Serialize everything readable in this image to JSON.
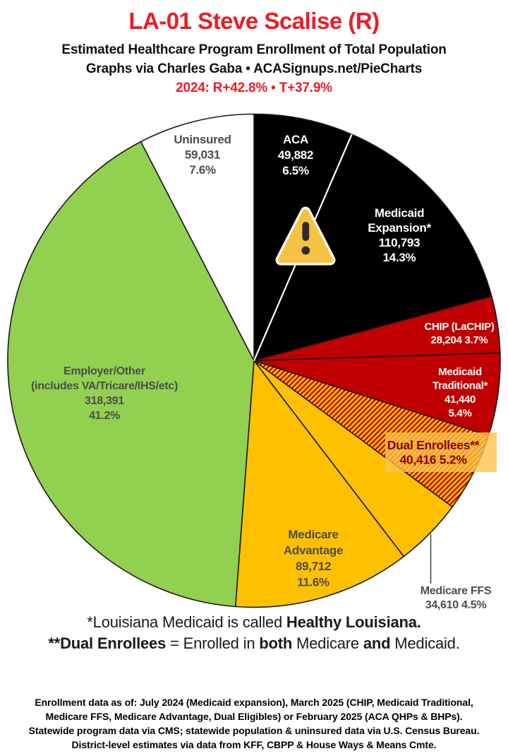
{
  "header": {
    "title": "LA-01 Steve Scalise (R)",
    "subtitle": "Estimated Healthcare Program Enrollment of Total Population",
    "credit": "Graphs via Charles Gaba   •   ACASignups.net/PieCharts",
    "partisan": "2024: R+42.8%  •  T+37.9%"
  },
  "colors": {
    "title_red": "#ED1C24",
    "black": "#000000",
    "red": "#C00000",
    "gold": "#FFC000",
    "green": "#92D050",
    "white": "#FFFFFF",
    "stripe_red": "#C00000",
    "stripe_gold": "#FFC000",
    "slice_outline": "#1A1A1A",
    "light_slice_text": "#4D4D4D",
    "dual_text": "#8B0000",
    "dual_highlight": "#FBC34C",
    "warning_fill": "#F6C242",
    "warning_mark": "#2D2D2D"
  },
  "chart_data": {
    "type": "pie",
    "title": "Estimated Healthcare Program Enrollment of Total Population",
    "start_angle": "12 o'clock",
    "direction": "clockwise",
    "total_percent": 100.0,
    "slices": [
      {
        "name": "ACA",
        "enrollment": 49882,
        "percent": 6.5,
        "fill": "black",
        "label_lines": [
          "ACA",
          "49,882",
          "6.5%"
        ]
      },
      {
        "name": "Medicaid Expansion*",
        "enrollment": 110793,
        "percent": 14.3,
        "fill": "black",
        "label_lines": [
          "Medicaid",
          "Expansion*",
          "110,793",
          "14.3%"
        ]
      },
      {
        "name": "CHIP (LaCHIP)",
        "enrollment": 28204,
        "percent": 3.7,
        "fill": "red",
        "label_lines": [
          "CHIP (LaCHIP)",
          "28,204 3.7%"
        ]
      },
      {
        "name": "Medicaid Traditional*",
        "enrollment": 41440,
        "percent": 5.4,
        "fill": "red",
        "label_lines": [
          "Medicaid",
          "Traditional*",
          "41,440",
          "5.4%"
        ]
      },
      {
        "name": "Dual Enrollees**",
        "enrollment": 40416,
        "percent": 5.2,
        "fill": "stripes",
        "label_lines": [
          "Dual Enrollees**",
          "40,416 5.2%"
        ]
      },
      {
        "name": "Medicare FFS",
        "enrollment": 34610,
        "percent": 4.5,
        "fill": "gold",
        "label_lines": [
          "Medicare FFS",
          "34,610 4.5%"
        ],
        "label_outside": true
      },
      {
        "name": "Medicare Advantage",
        "enrollment": 89712,
        "percent": 11.6,
        "fill": "gold",
        "label_lines": [
          "Medicare",
          "Advantage",
          "89,712",
          "11.6%"
        ]
      },
      {
        "name": "Employer/Other (includes VA/Tricare/IHS/etc)",
        "enrollment": 318391,
        "percent": 41.2,
        "fill": "green",
        "label_lines": [
          "Employer/Other",
          "(includes VA/Tricare/IHS/etc)",
          "318,391",
          "41.2%"
        ]
      },
      {
        "name": "Uninsured",
        "enrollment": 59031,
        "percent": 7.6,
        "fill": "white",
        "label_lines": [
          "Uninsured",
          "59,031",
          "7.6%"
        ]
      }
    ]
  },
  "footnotes": [
    {
      "segments": [
        {
          "text": "*Louisiana Medicaid is called ",
          "bold": false
        },
        {
          "text": "Healthy Louisiana.",
          "bold": true
        }
      ]
    },
    {
      "segments": [
        {
          "text": "**Dual Enrollees",
          "bold": true
        },
        {
          "text": " = Enrolled in ",
          "bold": false
        },
        {
          "text": "both",
          "bold": true
        },
        {
          "text": " Medicare ",
          "bold": false
        },
        {
          "text": "and",
          "bold": true
        },
        {
          "text": " Medicaid.",
          "bold": false
        }
      ]
    }
  ],
  "footer": {
    "lines": [
      "Enrollment data as of: July 2024 (Medicaid expansion), March 2025 (CHIP, Medicaid Traditional,",
      "Medicare FFS, Medicare Advantage, Dual Eligibles) or February 2025 (ACA QHPs & BHPs).",
      "Statewide program data via CMS; statewide population & uninsured data via U.S. Census Bureau.",
      "District-level estimates via data from KFF, CBPP & House Ways & Means Cmte."
    ]
  }
}
